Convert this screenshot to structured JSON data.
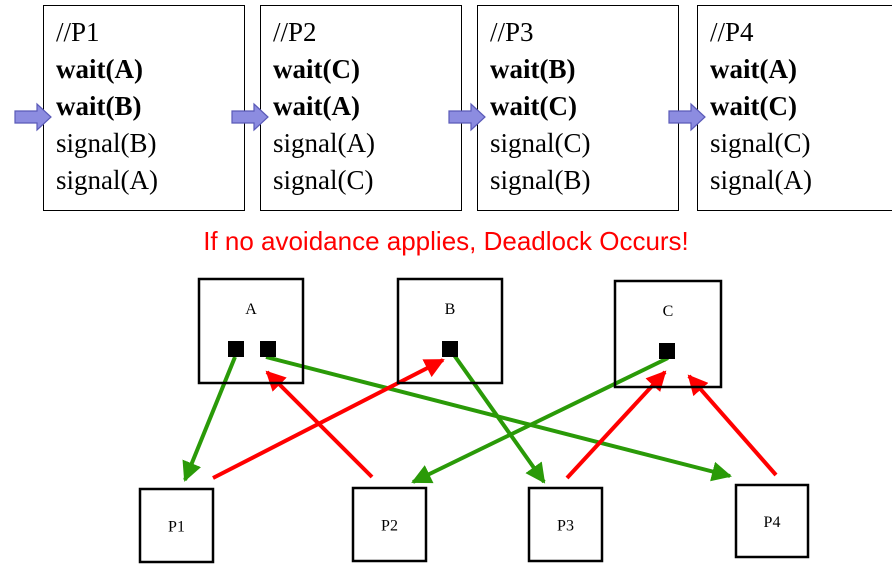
{
  "processes": [
    {
      "lines": [
        {
          "text": "//P1",
          "bold": false
        },
        {
          "text": "wait(A)",
          "bold": true
        },
        {
          "text": "wait(B)",
          "bold": true
        },
        {
          "text": "signal(B)",
          "bold": false
        },
        {
          "text": "signal(A)",
          "bold": false
        }
      ],
      "pointer_line": 2
    },
    {
      "lines": [
        {
          "text": "//P2",
          "bold": false
        },
        {
          "text": "wait(C)",
          "bold": true
        },
        {
          "text": "wait(A)",
          "bold": true
        },
        {
          "text": "signal(A)",
          "bold": false
        },
        {
          "text": "signal(C)",
          "bold": false
        }
      ],
      "pointer_line": 2
    },
    {
      "lines": [
        {
          "text": "//P3",
          "bold": false
        },
        {
          "text": "wait(B)",
          "bold": true
        },
        {
          "text": "wait(C)",
          "bold": true
        },
        {
          "text": "signal(C)",
          "bold": false
        },
        {
          "text": "signal(B)",
          "bold": false
        }
      ],
      "pointer_line": 2
    },
    {
      "lines": [
        {
          "text": "//P4",
          "bold": false
        },
        {
          "text": "wait(A)",
          "bold": true
        },
        {
          "text": "wait(C)",
          "bold": true
        },
        {
          "text": "signal(C)",
          "bold": false
        },
        {
          "text": "signal(A)",
          "bold": false
        }
      ],
      "pointer_line": 2
    }
  ],
  "headline": {
    "text": "If no avoidance applies, Deadlock Occurs!",
    "color": "#ff0000"
  },
  "graph": {
    "resources": [
      {
        "id": "A",
        "label": "A",
        "instances": 2
      },
      {
        "id": "B",
        "label": "B",
        "instances": 1
      },
      {
        "id": "C",
        "label": "C",
        "instances": 1
      }
    ],
    "process_nodes": [
      {
        "id": "P1",
        "label": "P1"
      },
      {
        "id": "P2",
        "label": "P2"
      },
      {
        "id": "P3",
        "label": "P3"
      },
      {
        "id": "P4",
        "label": "P4"
      }
    ],
    "assignment_edges": [
      {
        "from": "A",
        "instance": 0,
        "to": "P1"
      },
      {
        "from": "A",
        "instance": 1,
        "to": "P4"
      },
      {
        "from": "B",
        "instance": 0,
        "to": "P3"
      },
      {
        "from": "C",
        "instance": 0,
        "to": "P2"
      }
    ],
    "request_edges": [
      {
        "from": "P1",
        "to": "B"
      },
      {
        "from": "P2",
        "to": "A"
      },
      {
        "from": "P3",
        "to": "C"
      },
      {
        "from": "P4",
        "to": "C"
      }
    ],
    "colors": {
      "assignment": "#2a9a08",
      "request": "#ff0000",
      "pointer_arrow": "#8c8ce0"
    }
  }
}
